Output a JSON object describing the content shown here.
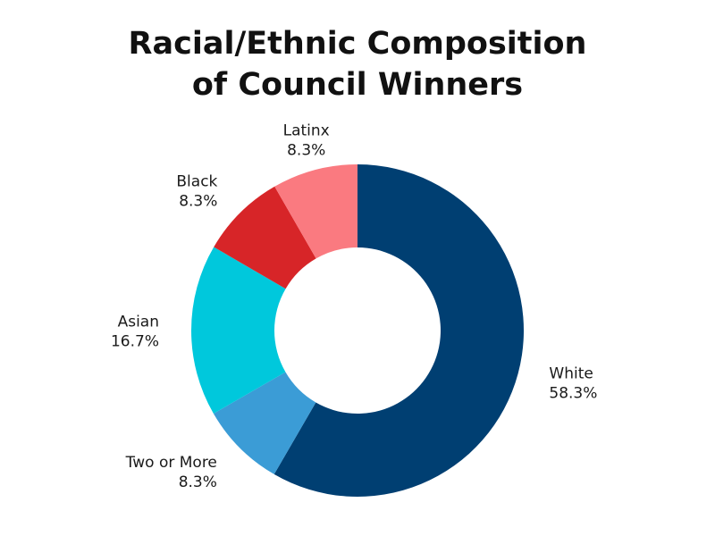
{
  "chart_data": {
    "type": "pie",
    "title_lines": [
      "Racial/Ethnic Composition",
      "of Council Winners"
    ],
    "slices": [
      {
        "name": "White",
        "label": "58.3%",
        "value": 58.3,
        "color": "#003f72"
      },
      {
        "name": "Two or More",
        "label": "8.3%",
        "value": 8.3,
        "color": "#3b9cd6"
      },
      {
        "name": "Asian",
        "label": "16.7%",
        "value": 16.7,
        "color": "#00c8dc"
      },
      {
        "name": "Black",
        "label": "8.3%",
        "value": 8.3,
        "color": "#d72528"
      },
      {
        "name": "Latinx",
        "label": "8.3%",
        "value": 8.3,
        "color": "#fa7a80"
      }
    ]
  }
}
